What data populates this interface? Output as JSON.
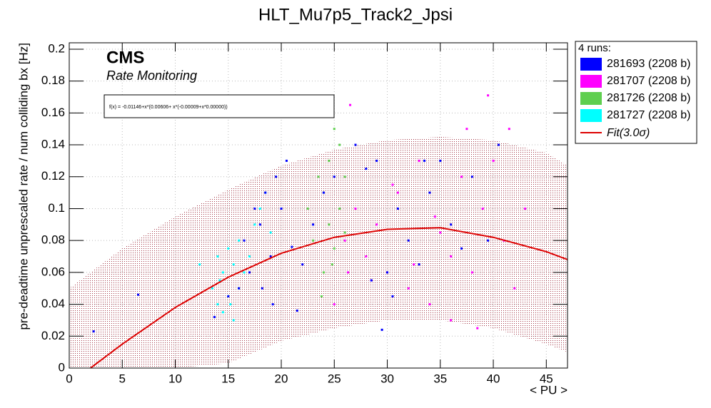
{
  "chart_data": {
    "type": "scatter",
    "title": "HLT_Mu7p5_Track2_Jpsi",
    "x_label": "< PU >",
    "y_label": "pre-deadtime unprescaled rate / num colliding bx [Hz]",
    "annotations": {
      "experiment": "CMS",
      "subtitle": "Rate Monitoring",
      "formula": "f(x) = -0.01146+x*(0.00606+ x*(-0.00009+x*0.00000))"
    },
    "legend_title": "4 runs:",
    "xlim": [
      0,
      47
    ],
    "ylim": [
      0,
      0.204
    ],
    "xticks": [
      0,
      5,
      10,
      15,
      20,
      25,
      30,
      35,
      40,
      45
    ],
    "yticks": [
      0,
      0.02,
      0.04,
      0.06,
      0.08,
      0.1,
      0.12,
      0.14,
      0.16,
      0.18,
      0.2
    ],
    "grid": true,
    "series": [
      {
        "name": "281693 (2208 b)",
        "color": "#0000ff",
        "x": [
          2.3,
          6.5,
          13.7,
          15,
          16,
          16.5,
          17,
          17.5,
          18,
          18.5,
          19,
          19.5,
          20,
          20.5,
          21,
          22,
          23,
          24,
          25,
          27,
          28,
          29,
          30,
          31,
          32,
          33,
          34,
          35,
          36,
          37,
          38,
          39.5,
          40.5,
          29.5,
          33.5,
          21.5,
          19.2,
          18.2,
          30.5,
          28.5
        ],
        "values": [
          0.023,
          0.046,
          0.032,
          0.045,
          0.05,
          0.08,
          0.06,
          0.1,
          0.09,
          0.11,
          0.07,
          0.12,
          0.1,
          0.13,
          0.076,
          0.065,
          0.09,
          0.11,
          0.12,
          0.14,
          0.125,
          0.13,
          0.06,
          0.1,
          0.08,
          0.065,
          0.11,
          0.13,
          0.09,
          0.075,
          0.12,
          0.08,
          0.14,
          0.024,
          0.13,
          0.036,
          0.04,
          0.05,
          0.045,
          0.055
        ]
      },
      {
        "name": "281707 (2208 b)",
        "color": "#ff00ff",
        "x": [
          25,
          26,
          26.5,
          27,
          28,
          29,
          30,
          31,
          32,
          33,
          34,
          35,
          36,
          37,
          38,
          39,
          40,
          41,
          42,
          43,
          39.5,
          37.5,
          36,
          34.5,
          32.5,
          30.5,
          28.5,
          41.5,
          38.5,
          26.3
        ],
        "values": [
          0.04,
          0.08,
          0.165,
          0.1,
          0.07,
          0.09,
          0.06,
          0.11,
          0.05,
          0.13,
          0.04,
          0.085,
          0.07,
          0.12,
          0.06,
          0.1,
          0.13,
          0.08,
          0.05,
          0.1,
          0.171,
          0.15,
          0.03,
          0.095,
          0.065,
          0.115,
          0.055,
          0.15,
          0.025,
          0.06
        ]
      },
      {
        "name": "281726 (2208 b)",
        "color": "#5fcf4f",
        "x": [
          22.5,
          23,
          23.5,
          24,
          24,
          24.5,
          24.5,
          25,
          25,
          25.5,
          25.5,
          26,
          26,
          23.8,
          24.8
        ],
        "values": [
          0.1,
          0.08,
          0.12,
          0.06,
          0.11,
          0.09,
          0.13,
          0.075,
          0.15,
          0.1,
          0.14,
          0.085,
          0.12,
          0.045,
          0.065
        ]
      },
      {
        "name": "281727 (2208 b)",
        "color": "#00ffff",
        "x": [
          12.3,
          13.5,
          14,
          14,
          14.5,
          14.5,
          15,
          15,
          15.5,
          15.5,
          16,
          16,
          16.5,
          17,
          17.5,
          18,
          18.5,
          19,
          14.2,
          15.2
        ],
        "values": [
          0.065,
          0.05,
          0.04,
          0.07,
          0.035,
          0.06,
          0.045,
          0.075,
          0.03,
          0.065,
          0.05,
          0.08,
          0.06,
          0.07,
          0.09,
          0.1,
          0.11,
          0.085,
          0.055,
          0.04
        ]
      }
    ],
    "fit": {
      "name": "Fit(3.0σ)",
      "color": "#dd0000",
      "band_color": "#a03040",
      "x": [
        2,
        5,
        10,
        15,
        20,
        25,
        30,
        35,
        40,
        45,
        47
      ],
      "values": [
        0,
        0.015,
        0.038,
        0.057,
        0.072,
        0.082,
        0.087,
        0.088,
        0.082,
        0.073,
        0.068
      ],
      "band_x": [
        0,
        5,
        10,
        15,
        20,
        25,
        30,
        35,
        40,
        45,
        47
      ],
      "upper": [
        0.05,
        0.075,
        0.095,
        0.112,
        0.127,
        0.137,
        0.143,
        0.145,
        0.143,
        0.135,
        0.127
      ],
      "lower": [
        0,
        0,
        0,
        0.003,
        0.017,
        0.025,
        0.03,
        0.03,
        0.025,
        0.015,
        0.01
      ]
    }
  }
}
